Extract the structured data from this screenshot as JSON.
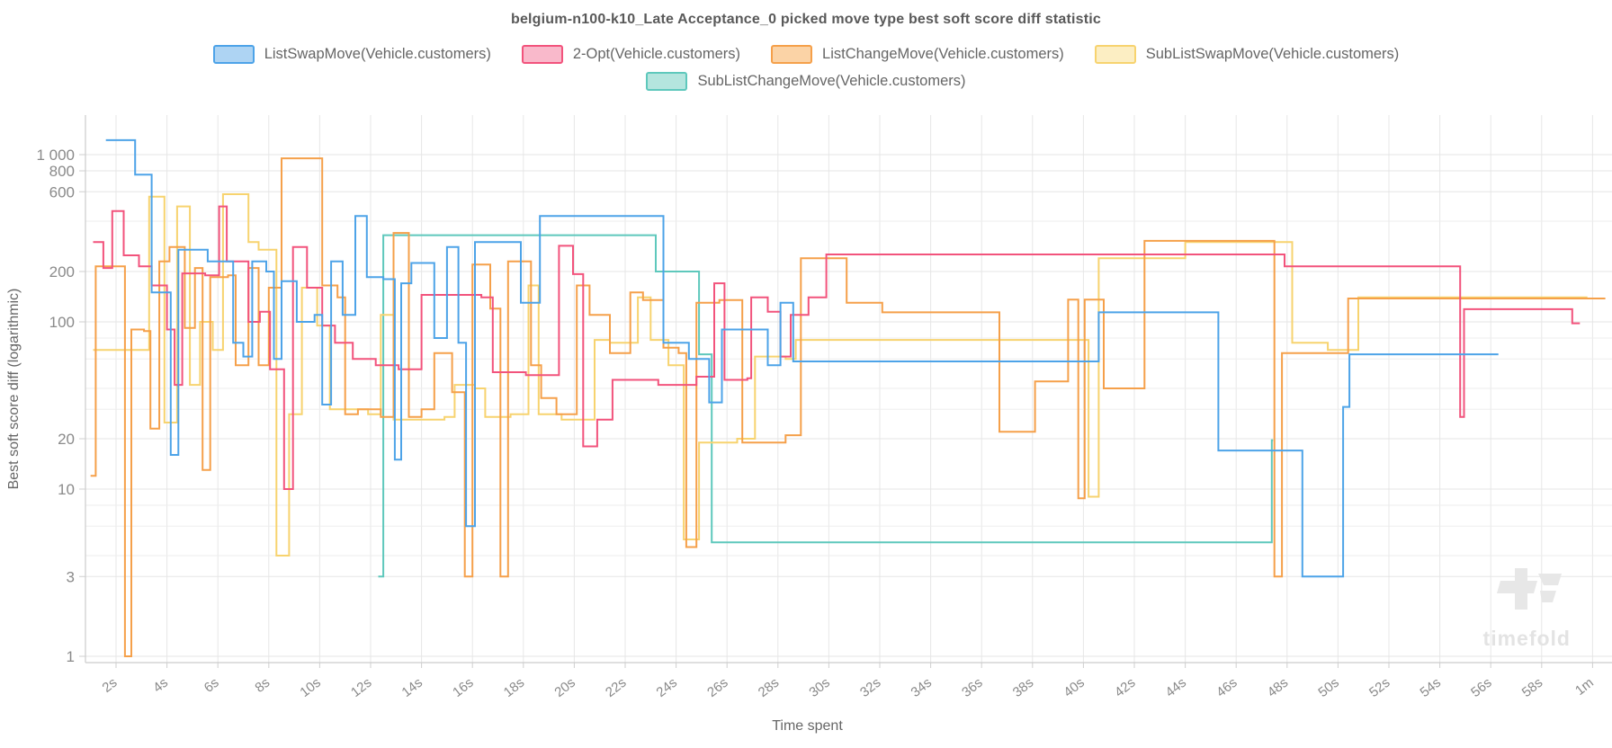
{
  "header": {
    "title": "belgium-n100-k10_Late Acceptance_0 picked move type best soft score diff statistic"
  },
  "watermark": {
    "text": "timefold"
  },
  "legend": {
    "rows": [
      [
        {
          "label": "ListSwapMove(Vehicle.customers)",
          "color": "#4da3e8",
          "fill": "#aed4f3"
        },
        {
          "label": "2-Opt(Vehicle.customers)",
          "color": "#f2537c",
          "fill": "#f9b9cb"
        },
        {
          "label": "ListChangeMove(Vehicle.customers)",
          "color": "#f5a04a",
          "fill": "#fbd3a6"
        },
        {
          "label": "SubListSwapMove(Vehicle.customers)",
          "color": "#f7d36f",
          "fill": "#fceec3"
        }
      ],
      [
        {
          "label": "SubListChangeMove(Vehicle.customers)",
          "color": "#5ec8bc",
          "fill": "#b4e5de"
        }
      ]
    ]
  },
  "chart_data": {
    "type": "line",
    "stepped": true,
    "log_y": true,
    "title": "belgium-n100-k10_Late Acceptance_0 picked move type best soft score diff statistic",
    "xlabel": "Time spent",
    "ylabel": "Best soft score diff (logarithmic)",
    "x_unit": "seconds",
    "x_range": [
      0.8,
      60.8
    ],
    "y_range": [
      1,
      1650
    ],
    "grid": true,
    "legend_position": "top",
    "x_ticks": [
      {
        "t": 2,
        "label": "2s"
      },
      {
        "t": 4,
        "label": "4s"
      },
      {
        "t": 6,
        "label": "6s"
      },
      {
        "t": 8,
        "label": "8s"
      },
      {
        "t": 10,
        "label": "10s"
      },
      {
        "t": 12,
        "label": "12s"
      },
      {
        "t": 14,
        "label": "14s"
      },
      {
        "t": 16,
        "label": "16s"
      },
      {
        "t": 18,
        "label": "18s"
      },
      {
        "t": 20,
        "label": "20s"
      },
      {
        "t": 22,
        "label": "22s"
      },
      {
        "t": 24,
        "label": "24s"
      },
      {
        "t": 26,
        "label": "26s"
      },
      {
        "t": 28,
        "label": "28s"
      },
      {
        "t": 30,
        "label": "30s"
      },
      {
        "t": 32,
        "label": "32s"
      },
      {
        "t": 34,
        "label": "34s"
      },
      {
        "t": 36,
        "label": "36s"
      },
      {
        "t": 38,
        "label": "38s"
      },
      {
        "t": 40,
        "label": "40s"
      },
      {
        "t": 42,
        "label": "42s"
      },
      {
        "t": 44,
        "label": "44s"
      },
      {
        "t": 46,
        "label": "46s"
      },
      {
        "t": 48,
        "label": "48s"
      },
      {
        "t": 50,
        "label": "50s"
      },
      {
        "t": 52,
        "label": "52s"
      },
      {
        "t": 54,
        "label": "54s"
      },
      {
        "t": 56,
        "label": "56s"
      },
      {
        "t": 58,
        "label": "58s"
      },
      {
        "t": 60,
        "label": "1m"
      }
    ],
    "y_ticks_labeled": [
      {
        "v": 1000,
        "label": "1 000"
      },
      {
        "v": 800,
        "label": "800"
      },
      {
        "v": 600,
        "label": "600"
      },
      {
        "v": 200,
        "label": "200"
      },
      {
        "v": 100,
        "label": "100"
      },
      {
        "v": 20,
        "label": "20"
      },
      {
        "v": 10,
        "label": "10"
      },
      {
        "v": 3,
        "label": "3"
      },
      {
        "v": 1,
        "label": "1"
      }
    ],
    "y_grid_unlabeled": [
      400,
      80,
      60,
      40,
      30,
      8,
      6,
      4
    ],
    "series": [
      {
        "name": "ListSwapMove(Vehicle.customers)",
        "color": "#4da3e8",
        "end": 56.3,
        "points": [
          [
            1.6,
            1220
          ],
          [
            2.75,
            760
          ],
          [
            3.4,
            150
          ],
          [
            4.15,
            16
          ],
          [
            4.45,
            270
          ],
          [
            5.6,
            230
          ],
          [
            6.6,
            75
          ],
          [
            7.0,
            62
          ],
          [
            7.35,
            230
          ],
          [
            7.9,
            200
          ],
          [
            8.2,
            60
          ],
          [
            8.5,
            175
          ],
          [
            9.1,
            100
          ],
          [
            9.8,
            110
          ],
          [
            10.1,
            32
          ],
          [
            10.45,
            230
          ],
          [
            10.9,
            110
          ],
          [
            11.4,
            430
          ],
          [
            11.85,
            185
          ],
          [
            12.5,
            180
          ],
          [
            12.95,
            15
          ],
          [
            13.2,
            170
          ],
          [
            13.6,
            225
          ],
          [
            14.5,
            80
          ],
          [
            15.0,
            280
          ],
          [
            15.45,
            75
          ],
          [
            15.75,
            6
          ],
          [
            16.1,
            300
          ],
          [
            17.9,
            130
          ],
          [
            18.65,
            430
          ],
          [
            23.5,
            75
          ],
          [
            24.5,
            60
          ],
          [
            25.3,
            33
          ],
          [
            25.8,
            90
          ],
          [
            27.6,
            55
          ],
          [
            28.1,
            130
          ],
          [
            28.6,
            58
          ],
          [
            40.6,
            114
          ],
          [
            45.3,
            17
          ],
          [
            48.6,
            3
          ],
          [
            50.2,
            31
          ],
          [
            50.45,
            64
          ]
        ]
      },
      {
        "name": "2-Opt(Vehicle.customers)",
        "color": "#f2537c",
        "end": 59.5,
        "points": [
          [
            1.1,
            300
          ],
          [
            1.5,
            210
          ],
          [
            1.85,
            460
          ],
          [
            2.3,
            250
          ],
          [
            2.9,
            215
          ],
          [
            3.4,
            165
          ],
          [
            4.0,
            90
          ],
          [
            4.3,
            42
          ],
          [
            4.6,
            195
          ],
          [
            5.5,
            190
          ],
          [
            6.05,
            490
          ],
          [
            6.35,
            230
          ],
          [
            7.2,
            100
          ],
          [
            7.65,
            115
          ],
          [
            8.05,
            52
          ],
          [
            8.6,
            10
          ],
          [
            8.95,
            280
          ],
          [
            9.5,
            160
          ],
          [
            10.1,
            95
          ],
          [
            10.6,
            75
          ],
          [
            11.3,
            60
          ],
          [
            12.2,
            55
          ],
          [
            13.1,
            52
          ],
          [
            14.0,
            145
          ],
          [
            16.35,
            140
          ],
          [
            16.8,
            50
          ],
          [
            18.1,
            48
          ],
          [
            19.4,
            285
          ],
          [
            19.95,
            193
          ],
          [
            20.35,
            18
          ],
          [
            20.9,
            26
          ],
          [
            21.5,
            45
          ],
          [
            23.3,
            42
          ],
          [
            24.8,
            47
          ],
          [
            25.5,
            170
          ],
          [
            25.9,
            45
          ],
          [
            26.8,
            46
          ],
          [
            26.95,
            140
          ],
          [
            27.6,
            115
          ],
          [
            28.1,
            62
          ],
          [
            28.5,
            110
          ],
          [
            29.2,
            140
          ],
          [
            29.9,
            253
          ],
          [
            47.9,
            215
          ],
          [
            54.8,
            27
          ],
          [
            54.95,
            119
          ],
          [
            59.2,
            98
          ]
        ]
      },
      {
        "name": "ListChangeMove(Vehicle.customers)",
        "color": "#f5a04a",
        "end": 60.5,
        "points": [
          [
            1.0,
            12
          ],
          [
            1.2,
            215
          ],
          [
            2.35,
            1
          ],
          [
            2.6,
            90
          ],
          [
            3.1,
            88
          ],
          [
            3.35,
            23
          ],
          [
            3.7,
            230
          ],
          [
            4.1,
            280
          ],
          [
            4.7,
            92
          ],
          [
            5.1,
            210
          ],
          [
            5.4,
            13
          ],
          [
            5.7,
            185
          ],
          [
            6.4,
            190
          ],
          [
            6.7,
            55
          ],
          [
            7.2,
            210
          ],
          [
            7.6,
            55
          ],
          [
            8.0,
            160
          ],
          [
            8.5,
            950
          ],
          [
            10.1,
            165
          ],
          [
            10.7,
            140
          ],
          [
            11.0,
            28
          ],
          [
            11.5,
            30
          ],
          [
            12.4,
            27
          ],
          [
            12.9,
            340
          ],
          [
            13.5,
            27
          ],
          [
            14.0,
            30
          ],
          [
            14.5,
            65
          ],
          [
            15.2,
            38
          ],
          [
            15.7,
            3
          ],
          [
            16.0,
            220
          ],
          [
            16.7,
            120
          ],
          [
            17.1,
            3
          ],
          [
            17.4,
            230
          ],
          [
            18.3,
            55
          ],
          [
            18.7,
            35
          ],
          [
            19.3,
            28
          ],
          [
            20.1,
            165
          ],
          [
            20.6,
            110
          ],
          [
            21.4,
            65
          ],
          [
            22.2,
            150
          ],
          [
            22.7,
            135
          ],
          [
            23.5,
            70
          ],
          [
            24.1,
            65
          ],
          [
            24.4,
            4.5
          ],
          [
            24.8,
            130
          ],
          [
            25.7,
            135
          ],
          [
            26.6,
            19
          ],
          [
            28.3,
            21
          ],
          [
            28.9,
            240
          ],
          [
            30.1,
            240
          ],
          [
            30.7,
            130
          ],
          [
            32.1,
            114
          ],
          [
            36.7,
            22
          ],
          [
            38.1,
            44
          ],
          [
            39.4,
            136
          ],
          [
            39.8,
            8.8
          ],
          [
            40.05,
            136
          ],
          [
            40.8,
            40
          ],
          [
            42.4,
            305
          ],
          [
            47.5,
            3
          ],
          [
            47.8,
            65
          ],
          [
            50.4,
            138
          ]
        ]
      },
      {
        "name": "SubListSwapMove(Vehicle.customers)",
        "color": "#f7d36f",
        "end": 59.8,
        "points": [
          [
            1.1,
            68
          ],
          [
            3.3,
            560
          ],
          [
            3.9,
            25
          ],
          [
            4.4,
            490
          ],
          [
            4.9,
            42
          ],
          [
            5.3,
            100
          ],
          [
            5.8,
            68
          ],
          [
            6.2,
            580
          ],
          [
            7.2,
            300
          ],
          [
            7.6,
            270
          ],
          [
            8.3,
            4
          ],
          [
            8.8,
            28
          ],
          [
            9.3,
            160
          ],
          [
            9.9,
            95
          ],
          [
            10.4,
            30
          ],
          [
            11.9,
            28
          ],
          [
            12.4,
            110
          ],
          [
            12.9,
            26
          ],
          [
            14.9,
            27
          ],
          [
            15.3,
            42
          ],
          [
            16.1,
            40
          ],
          [
            16.5,
            27
          ],
          [
            17.5,
            28
          ],
          [
            18.2,
            165
          ],
          [
            18.6,
            28
          ],
          [
            19.5,
            26
          ],
          [
            20.8,
            78
          ],
          [
            21.4,
            75
          ],
          [
            22.5,
            140
          ],
          [
            23.0,
            78
          ],
          [
            23.7,
            55
          ],
          [
            24.3,
            5
          ],
          [
            24.9,
            19
          ],
          [
            26.4,
            20
          ],
          [
            27.1,
            62
          ],
          [
            28.3,
            60
          ],
          [
            28.7,
            78
          ],
          [
            40.2,
            9
          ],
          [
            40.6,
            240
          ],
          [
            44.0,
            300
          ],
          [
            48.2,
            75
          ],
          [
            49.6,
            68
          ],
          [
            50.8,
            140
          ]
        ]
      },
      {
        "name": "SubListChangeMove(Vehicle.customers)",
        "color": "#5ec8bc",
        "end": 47.45,
        "points": [
          [
            12.3,
            3
          ],
          [
            12.5,
            330
          ],
          [
            23.2,
            200
          ],
          [
            24.9,
            64
          ],
          [
            25.4,
            4.8
          ],
          [
            47.4,
            19.6
          ]
        ]
      }
    ]
  }
}
